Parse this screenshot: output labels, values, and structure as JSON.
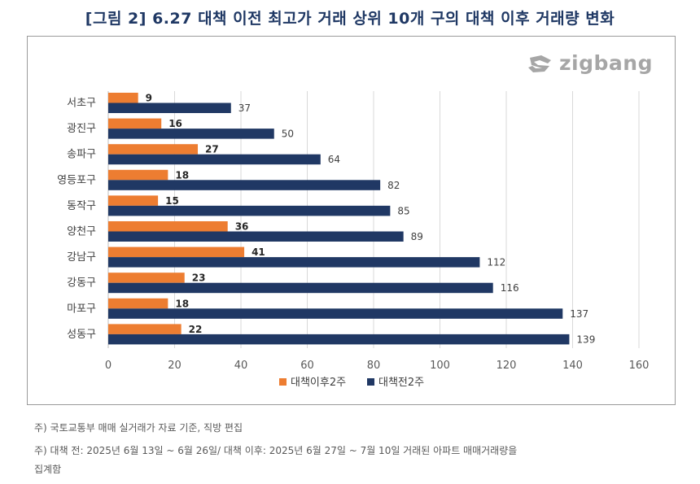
{
  "title": "[그림 2] 6.27 대책 이전 최고가 거래 상위 10개 구의 대책 이후 거래량 변화",
  "logo": {
    "text": "zigbang"
  },
  "notes": [
    "주) 국토교통부 매매 실거래가 자료 기준, 직방 편집",
    "주) 대책 전: 2025년 6월 13일 ~ 6월 26일/ 대책 이후: 2025년 6월 27일 ~ 7월 10일 거래된 아파트 매매거래량을",
    "집계함"
  ],
  "chart_data": {
    "type": "bar",
    "orientation": "horizontal",
    "categories": [
      "서초구",
      "광진구",
      "송파구",
      "영등포구",
      "동작구",
      "양천구",
      "강남구",
      "강동구",
      "마포구",
      "성동구"
    ],
    "series": [
      {
        "name": "대책이후2주",
        "color": "#ed7d31",
        "values": [
          9,
          16,
          27,
          18,
          15,
          36,
          41,
          23,
          18,
          22
        ]
      },
      {
        "name": "대책전2주",
        "color": "#203864",
        "values": [
          37,
          50,
          64,
          82,
          85,
          89,
          112,
          116,
          137,
          139
        ]
      }
    ],
    "xlim": [
      0,
      160
    ],
    "xticks": [
      0,
      20,
      40,
      60,
      80,
      100,
      120,
      140,
      160
    ],
    "grid": true,
    "legend": "bottom"
  }
}
